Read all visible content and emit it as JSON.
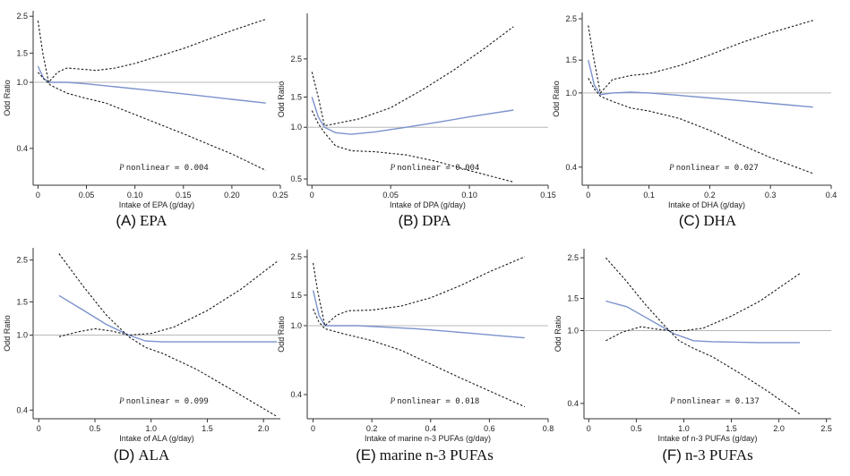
{
  "figure": {
    "panels": [
      {
        "tag": "(A)",
        "name": "EPA"
      },
      {
        "tag": "(B)",
        "name": "DPA"
      },
      {
        "tag": "(C)",
        "name": "DHA"
      },
      {
        "tag": "(D)",
        "name": "ALA"
      },
      {
        "tag": "(E)",
        "name": "marine n-3 PUFAs"
      },
      {
        "tag": "(F)",
        "name": "n-3 PUFAs"
      }
    ]
  },
  "chart_data": [
    {
      "type": "line",
      "panel": "(A) EPA",
      "title": "",
      "xlabel": "Intake of EPA (g/day)",
      "ylabel": "Odd Ratio",
      "y_scale": "log",
      "xlim": [
        -0.005,
        0.25
      ],
      "ylim": [
        0.24,
        2.7
      ],
      "x_ticks": [
        0,
        0.05,
        0.1,
        0.15,
        0.2,
        0.25
      ],
      "x_tick_labels": [
        "0",
        "0.05",
        "0.10",
        "0.15",
        "0.20",
        "0.25"
      ],
      "y_ticks": [
        0.4,
        1.0,
        1.5,
        2.5
      ],
      "y_tick_labels": [
        "0.4",
        "1.0",
        "1.5",
        "2.5"
      ],
      "reference_line": 1.0,
      "p_label": "P",
      "p_text": "nonlinear = 0.004",
      "series": [
        {
          "role": "estimate",
          "points": [
            [
              0,
              1.25
            ],
            [
              0.006,
              1.05
            ],
            [
              0.013,
              1.0
            ],
            [
              0.03,
              1.0
            ],
            [
              0.05,
              0.98
            ],
            [
              0.08,
              0.94
            ],
            [
              0.12,
              0.89
            ],
            [
              0.16,
              0.84
            ],
            [
              0.2,
              0.79
            ],
            [
              0.235,
              0.75
            ]
          ]
        },
        {
          "role": "upper",
          "points": [
            [
              0,
              2.35
            ],
            [
              0.005,
              1.5
            ],
            [
              0.011,
              1.0
            ],
            [
              0.02,
              1.15
            ],
            [
              0.03,
              1.22
            ],
            [
              0.045,
              1.2
            ],
            [
              0.06,
              1.18
            ],
            [
              0.08,
              1.22
            ],
            [
              0.1,
              1.3
            ],
            [
              0.15,
              1.6
            ],
            [
              0.2,
              2.05
            ],
            [
              0.235,
              2.4
            ]
          ]
        },
        {
          "role": "lower",
          "points": [
            [
              0,
              1.15
            ],
            [
              0.006,
              1.05
            ],
            [
              0.013,
              0.96
            ],
            [
              0.03,
              0.86
            ],
            [
              0.05,
              0.8
            ],
            [
              0.07,
              0.75
            ],
            [
              0.1,
              0.64
            ],
            [
              0.15,
              0.49
            ],
            [
              0.2,
              0.37
            ],
            [
              0.235,
              0.295
            ]
          ]
        }
      ]
    },
    {
      "type": "line",
      "panel": "(B) DPA",
      "title": "",
      "xlabel": "Intake of DPA (g/day)",
      "ylabel": "Odd Ratio",
      "y_scale": "log",
      "xlim": [
        -0.003,
        0.15
      ],
      "ylim": [
        0.46,
        4.6
      ],
      "x_ticks": [
        0,
        0.05,
        0.1,
        0.15
      ],
      "x_tick_labels": [
        "0",
        "0.05",
        "0.10",
        "0.15"
      ],
      "y_ticks": [
        0.5,
        1.0,
        1.5,
        2.5
      ],
      "y_tick_labels": [
        "0.5",
        "1.0",
        "1.5",
        "2.5"
      ],
      "reference_line": 1.0,
      "p_label": "P",
      "p_text": "nonlinear = 0.004",
      "series": [
        {
          "role": "estimate",
          "points": [
            [
              0,
              1.5
            ],
            [
              0.004,
              1.15
            ],
            [
              0.008,
              1.0
            ],
            [
              0.015,
              0.93
            ],
            [
              0.025,
              0.91
            ],
            [
              0.04,
              0.94
            ],
            [
              0.06,
              1.0
            ],
            [
              0.08,
              1.07
            ],
            [
              0.1,
              1.15
            ],
            [
              0.128,
              1.26
            ]
          ]
        },
        {
          "role": "upper",
          "points": [
            [
              0,
              2.1
            ],
            [
              0.004,
              1.5
            ],
            [
              0.008,
              1.02
            ],
            [
              0.015,
              1.05
            ],
            [
              0.03,
              1.12
            ],
            [
              0.05,
              1.3
            ],
            [
              0.07,
              1.65
            ],
            [
              0.09,
              2.15
            ],
            [
              0.11,
              2.9
            ],
            [
              0.128,
              3.85
            ]
          ]
        },
        {
          "role": "lower",
          "points": [
            [
              0,
              1.25
            ],
            [
              0.004,
              1.05
            ],
            [
              0.008,
              0.93
            ],
            [
              0.015,
              0.78
            ],
            [
              0.025,
              0.73
            ],
            [
              0.04,
              0.72
            ],
            [
              0.06,
              0.69
            ],
            [
              0.08,
              0.63
            ],
            [
              0.1,
              0.56
            ],
            [
              0.128,
              0.48
            ]
          ]
        }
      ]
    },
    {
      "type": "line",
      "panel": "(C) DHA",
      "title": "",
      "xlabel": "Intake of DHA (g/day)",
      "ylabel": "Odd Ratio",
      "y_scale": "log",
      "xlim": [
        -0.01,
        0.4
      ],
      "ylim": [
        0.32,
        2.7
      ],
      "x_ticks": [
        0,
        0.1,
        0.2,
        0.3,
        0.4
      ],
      "x_tick_labels": [
        "0",
        "0.1",
        "0.2",
        "0.3",
        "0.4"
      ],
      "y_ticks": [
        0.4,
        1.0,
        1.5,
        2.5
      ],
      "y_tick_labels": [
        "0.4",
        "1.0",
        "1.5",
        "2.5"
      ],
      "reference_line": 1.0,
      "p_label": "P",
      "p_text": "nonlinear = 0.027",
      "series": [
        {
          "role": "estimate",
          "points": [
            [
              0,
              1.5
            ],
            [
              0.01,
              1.1
            ],
            [
              0.02,
              0.98
            ],
            [
              0.04,
              1.0
            ],
            [
              0.07,
              1.01
            ],
            [
              0.1,
              1.0
            ],
            [
              0.15,
              0.97
            ],
            [
              0.2,
              0.94
            ],
            [
              0.25,
              0.91
            ],
            [
              0.3,
              0.88
            ],
            [
              0.37,
              0.84
            ]
          ]
        },
        {
          "role": "upper",
          "points": [
            [
              0,
              2.3
            ],
            [
              0.008,
              1.6
            ],
            [
              0.02,
              1.0
            ],
            [
              0.04,
              1.18
            ],
            [
              0.07,
              1.24
            ],
            [
              0.1,
              1.27
            ],
            [
              0.15,
              1.4
            ],
            [
              0.2,
              1.6
            ],
            [
              0.25,
              1.85
            ],
            [
              0.3,
              2.1
            ],
            [
              0.37,
              2.45
            ]
          ]
        },
        {
          "role": "lower",
          "points": [
            [
              0,
              1.2
            ],
            [
              0.01,
              1.05
            ],
            [
              0.02,
              0.96
            ],
            [
              0.04,
              0.9
            ],
            [
              0.07,
              0.83
            ],
            [
              0.1,
              0.8
            ],
            [
              0.15,
              0.73
            ],
            [
              0.2,
              0.63
            ],
            [
              0.25,
              0.53
            ],
            [
              0.3,
              0.45
            ],
            [
              0.37,
              0.37
            ]
          ]
        }
      ]
    },
    {
      "type": "line",
      "panel": "(D) ALA",
      "title": "",
      "xlabel": "Intake of ALA (g/day)",
      "ylabel": "Odd Ratio",
      "y_scale": "log",
      "xlim": [
        -0.05,
        2.15
      ],
      "ylim": [
        0.36,
        2.9
      ],
      "x_ticks": [
        0,
        0.5,
        1.0,
        1.5,
        2.0
      ],
      "x_tick_labels": [
        "0",
        "0.5",
        "1.0",
        "1.5",
        "2.0"
      ],
      "y_ticks": [
        0.4,
        1.0,
        1.5,
        2.5
      ],
      "y_tick_labels": [
        "0.4",
        "1.0",
        "1.5",
        "2.5"
      ],
      "reference_line": 1.0,
      "p_label": "P",
      "p_text": "nonlinear = 0.099",
      "series": [
        {
          "role": "estimate",
          "points": [
            [
              0.18,
              1.62
            ],
            [
              0.4,
              1.35
            ],
            [
              0.6,
              1.14
            ],
            [
              0.8,
              1.0
            ],
            [
              0.95,
              0.93
            ],
            [
              1.1,
              0.92
            ],
            [
              1.4,
              0.92
            ],
            [
              1.8,
              0.92
            ],
            [
              2.12,
              0.92
            ]
          ]
        },
        {
          "role": "upper",
          "points": [
            [
              0.18,
              0.98
            ],
            [
              0.35,
              1.04
            ],
            [
              0.5,
              1.08
            ],
            [
              0.65,
              1.05
            ],
            [
              0.8,
              1.0
            ],
            [
              1.0,
              1.02
            ],
            [
              1.2,
              1.1
            ],
            [
              1.5,
              1.35
            ],
            [
              1.8,
              1.75
            ],
            [
              2.12,
              2.45
            ]
          ]
        },
        {
          "role": "lower",
          "points": [
            [
              0.18,
              2.7
            ],
            [
              0.4,
              1.8
            ],
            [
              0.6,
              1.28
            ],
            [
              0.8,
              0.98
            ],
            [
              0.95,
              0.86
            ],
            [
              1.1,
              0.8
            ],
            [
              1.4,
              0.66
            ],
            [
              1.7,
              0.52
            ],
            [
              2.12,
              0.37
            ]
          ]
        }
      ]
    },
    {
      "type": "line",
      "panel": "(E) marine n-3 PUFAs",
      "title": "",
      "xlabel": "Intake of marine n-3 PUFAs (g/day)",
      "ylabel": "Odd Ratio",
      "y_scale": "log",
      "xlim": [
        -0.02,
        0.8
      ],
      "ylim": [
        0.29,
        2.75
      ],
      "x_ticks": [
        0,
        0.2,
        0.4,
        0.6,
        0.8
      ],
      "x_tick_labels": [
        "0",
        "0.2",
        "0.4",
        "0.6",
        "0.8"
      ],
      "y_ticks": [
        0.4,
        1.0,
        1.5,
        2.5
      ],
      "y_tick_labels": [
        "0.4",
        "1.0",
        "1.5",
        "2.5"
      ],
      "reference_line": 1.0,
      "p_label": "P",
      "p_text": "nonlinear = 0.018",
      "series": [
        {
          "role": "estimate",
          "points": [
            [
              0,
              1.6
            ],
            [
              0.02,
              1.15
            ],
            [
              0.04,
              1.0
            ],
            [
              0.08,
              1.0
            ],
            [
              0.15,
              1.0
            ],
            [
              0.25,
              0.98
            ],
            [
              0.35,
              0.96
            ],
            [
              0.45,
              0.93
            ],
            [
              0.55,
              0.9
            ],
            [
              0.65,
              0.87
            ],
            [
              0.72,
              0.85
            ]
          ]
        },
        {
          "role": "upper",
          "points": [
            [
              0,
              2.3
            ],
            [
              0.015,
              1.6
            ],
            [
              0.04,
              1.0
            ],
            [
              0.08,
              1.15
            ],
            [
              0.12,
              1.22
            ],
            [
              0.2,
              1.23
            ],
            [
              0.3,
              1.3
            ],
            [
              0.4,
              1.45
            ],
            [
              0.5,
              1.7
            ],
            [
              0.6,
              2.05
            ],
            [
              0.72,
              2.5
            ]
          ]
        },
        {
          "role": "lower",
          "points": [
            [
              0,
              1.25
            ],
            [
              0.02,
              1.05
            ],
            [
              0.04,
              0.96
            ],
            [
              0.1,
              0.9
            ],
            [
              0.2,
              0.82
            ],
            [
              0.3,
              0.72
            ],
            [
              0.4,
              0.6
            ],
            [
              0.5,
              0.5
            ],
            [
              0.6,
              0.42
            ],
            [
              0.72,
              0.34
            ]
          ]
        }
      ]
    },
    {
      "type": "line",
      "panel": "(F) n-3 PUFAs",
      "title": "",
      "xlabel": "Intake of n-3 PUFAs (g/day)",
      "ylabel": "Odd Ratio",
      "y_scale": "log",
      "xlim": [
        -0.05,
        2.55
      ],
      "ylim": [
        0.33,
        2.8
      ],
      "x_ticks": [
        0,
        0.5,
        1.0,
        1.5,
        2.0,
        2.5
      ],
      "x_tick_labels": [
        "0",
        "0.5",
        "1.0",
        "1.5",
        "2.0",
        "2.5"
      ],
      "y_ticks": [
        0.4,
        1.0,
        1.5,
        2.5
      ],
      "y_tick_labels": [
        "0.4",
        "1.0",
        "1.5",
        "2.5"
      ],
      "reference_line": 1.0,
      "p_label": "P",
      "p_text": "nonlinear = 0.137",
      "series": [
        {
          "role": "estimate",
          "points": [
            [
              0.18,
              1.45
            ],
            [
              0.4,
              1.35
            ],
            [
              0.6,
              1.18
            ],
            [
              0.8,
              1.03
            ],
            [
              0.9,
              0.96
            ],
            [
              1.1,
              0.88
            ],
            [
              1.3,
              0.87
            ],
            [
              1.8,
              0.86
            ],
            [
              2.22,
              0.86
            ]
          ]
        },
        {
          "role": "upper",
          "points": [
            [
              0.18,
              0.88
            ],
            [
              0.35,
              0.98
            ],
            [
              0.55,
              1.05
            ],
            [
              0.7,
              1.02
            ],
            [
              0.85,
              1.0
            ],
            [
              1.0,
              1.0
            ],
            [
              1.2,
              1.03
            ],
            [
              1.5,
              1.2
            ],
            [
              1.8,
              1.45
            ],
            [
              2.22,
              2.05
            ]
          ]
        },
        {
          "role": "lower",
          "points": [
            [
              0.18,
              2.5
            ],
            [
              0.4,
              1.85
            ],
            [
              0.6,
              1.38
            ],
            [
              0.8,
              1.06
            ],
            [
              0.95,
              0.88
            ],
            [
              1.1,
              0.8
            ],
            [
              1.3,
              0.72
            ],
            [
              1.6,
              0.58
            ],
            [
              1.9,
              0.46
            ],
            [
              2.22,
              0.35
            ]
          ]
        }
      ]
    }
  ]
}
